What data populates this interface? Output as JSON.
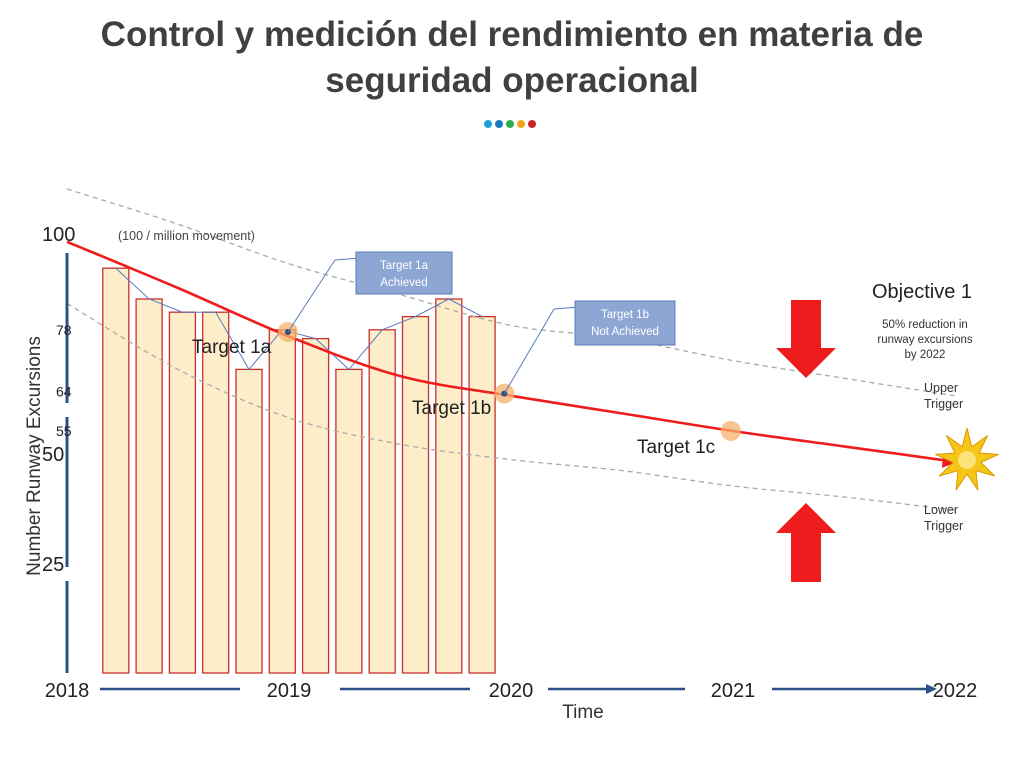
{
  "title_line1": "Control y medición del rendimiento en materia de",
  "title_line2": "seguridad operacional",
  "title_dots": [
    {
      "name": "title-dot-1",
      "color": "#1fa2dc"
    },
    {
      "name": "title-dot-2",
      "color": "#1b79c2"
    },
    {
      "name": "title-dot-3",
      "color": "#2ab04a"
    },
    {
      "name": "title-dot-4",
      "color": "#f1a51f"
    },
    {
      "name": "title-dot-5",
      "color": "#c8262b"
    }
  ],
  "colors": {
    "bar_fill": "#fdeec9",
    "bar_stroke": "#c9302c",
    "trend": "#ee1c1c",
    "axis": "#2b4f87",
    "trigger": "#aaaaaa",
    "callout_fill": "#8da6d3",
    "callout_stroke": "#5b7bbd",
    "marker": "#f6b26b",
    "arrow": "#ee1c1c",
    "star": "#f5c518"
  },
  "chart_data": {
    "type": "bar",
    "ylabel": "Number Runway Excursions",
    "unit_note": "(100 / million movement)",
    "xlabel": "Time",
    "x_ticks": [
      "2018",
      "2019",
      "2020",
      "2021",
      "2022"
    ],
    "x_range": [
      2018,
      2022
    ],
    "y_ticks": [
      {
        "value": 100,
        "label": "100",
        "size": "large"
      },
      {
        "value": 78,
        "label": "78",
        "size": "small"
      },
      {
        "value": 64,
        "label": "64",
        "size": "small"
      },
      {
        "value": 55,
        "label": "55",
        "size": "small"
      },
      {
        "value": 50,
        "label": "50",
        "size": "large"
      },
      {
        "value": 25,
        "label": "25",
        "size": "large"
      }
    ],
    "ylim": [
      0,
      100
    ],
    "bars": [
      {
        "x": 2018.22,
        "value": 92
      },
      {
        "x": 2018.37,
        "value": 85
      },
      {
        "x": 2018.52,
        "value": 82
      },
      {
        "x": 2018.67,
        "value": 82
      },
      {
        "x": 2018.82,
        "value": 69
      },
      {
        "x": 2018.97,
        "value": 78
      },
      {
        "x": 2019.12,
        "value": 76
      },
      {
        "x": 2019.27,
        "value": 69
      },
      {
        "x": 2019.42,
        "value": 78
      },
      {
        "x": 2019.57,
        "value": 81
      },
      {
        "x": 2019.72,
        "value": 85
      },
      {
        "x": 2019.87,
        "value": 81
      }
    ],
    "trend": [
      {
        "x": 2018.0,
        "y": 98
      },
      {
        "x": 2018.5,
        "y": 87.5
      },
      {
        "x": 2019.0,
        "y": 76.5
      },
      {
        "x": 2019.5,
        "y": 67.5
      },
      {
        "x": 2020.0,
        "y": 63
      },
      {
        "x": 2020.5,
        "y": 59
      },
      {
        "x": 2021.0,
        "y": 55
      },
      {
        "x": 2021.5,
        "y": 51.5
      },
      {
        "x": 2022.0,
        "y": 48
      }
    ],
    "upper_trigger": [
      {
        "x": 2018.0,
        "y": 110
      },
      {
        "x": 2018.5,
        "y": 102
      },
      {
        "x": 2019.0,
        "y": 93
      },
      {
        "x": 2019.5,
        "y": 86
      },
      {
        "x": 2020.0,
        "y": 79
      },
      {
        "x": 2020.5,
        "y": 76
      },
      {
        "x": 2021.0,
        "y": 71
      },
      {
        "x": 2021.5,
        "y": 67
      },
      {
        "x": 2022.0,
        "y": 63
      }
    ],
    "lower_trigger": [
      {
        "x": 2018.0,
        "y": 84
      },
      {
        "x": 2018.5,
        "y": 69
      },
      {
        "x": 2019.0,
        "y": 58
      },
      {
        "x": 2019.5,
        "y": 52
      },
      {
        "x": 2020.0,
        "y": 48.5
      },
      {
        "x": 2020.5,
        "y": 46
      },
      {
        "x": 2021.0,
        "y": 42.5
      },
      {
        "x": 2021.5,
        "y": 40
      },
      {
        "x": 2022.0,
        "y": 37
      }
    ],
    "targets": [
      {
        "id": "1a",
        "label": "Target 1a",
        "x": 2018.995,
        "y": 77.5
      },
      {
        "id": "1b",
        "label": "Target 1b",
        "x": 2019.97,
        "y": 63.5
      },
      {
        "id": "1c",
        "label": "Target 1c",
        "x": 2020.99,
        "y": 55
      }
    ],
    "callouts": [
      {
        "id": "1a",
        "lines": [
          "Target 1a",
          "Achieved"
        ]
      },
      {
        "id": "1b",
        "lines": [
          "Target 1b",
          "Not Achieved"
        ]
      }
    ],
    "objective": {
      "title": "Objective 1",
      "lines": [
        "50% reduction in",
        "runway excursions",
        "by 2022"
      ]
    },
    "triggers": {
      "upper": [
        "Upper",
        "Trigger"
      ],
      "lower": [
        "Lower",
        "Trigger"
      ]
    }
  }
}
